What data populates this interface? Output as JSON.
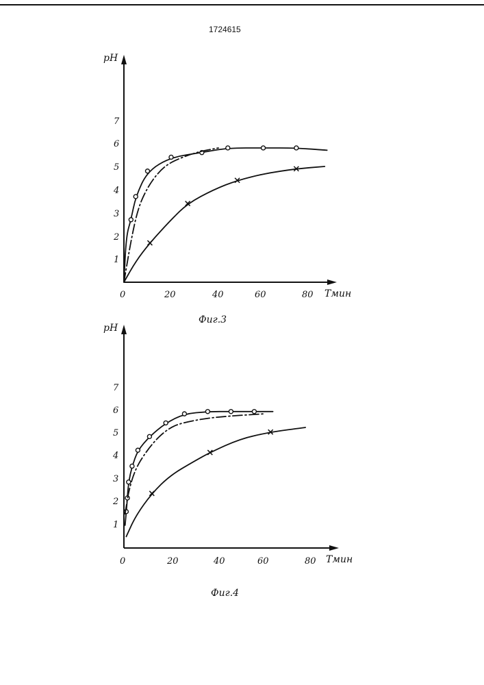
{
  "document": {
    "number": "1724615"
  },
  "chart_data": [
    {
      "type": "line",
      "caption": "Фиг.3",
      "xlabel": "Tмин",
      "ylabel": "pH",
      "xlim": [
        0,
        90
      ],
      "ylim": [
        0,
        8
      ],
      "x_ticks": [
        "0",
        "20",
        "40",
        "60",
        "80"
      ],
      "y_ticks": [
        "1",
        "2",
        "3",
        "4",
        "5",
        "6",
        "7"
      ],
      "series": [
        {
          "marker": "circle",
          "line_style": "solid",
          "x": [
            0,
            1,
            3,
            5,
            10,
            20,
            33,
            44,
            59,
            73,
            86
          ],
          "y": [
            0,
            2.0,
            2.7,
            3.7,
            4.8,
            5.4,
            5.6,
            5.8,
            5.8,
            5.8,
            5.7
          ],
          "markers_x": [
            3,
            5,
            10,
            20,
            33,
            44,
            59,
            73
          ],
          "markers_y": [
            2.7,
            3.7,
            4.8,
            5.4,
            5.6,
            5.8,
            5.8,
            5.8
          ]
        },
        {
          "marker": "none",
          "line_style": "dash-dot",
          "x": [
            0,
            3,
            6,
            10,
            15,
            20,
            30,
            40
          ],
          "y": [
            0,
            1.8,
            3.2,
            4.1,
            4.8,
            5.2,
            5.6,
            5.8
          ]
        },
        {
          "marker": "cross",
          "line_style": "solid",
          "x": [
            0,
            5,
            11,
            20,
            27,
            38,
            48,
            60,
            73,
            85
          ],
          "y": [
            0,
            0.9,
            1.7,
            2.7,
            3.4,
            4.0,
            4.4,
            4.7,
            4.9,
            5.0
          ],
          "markers_x": [
            11,
            27,
            48,
            73
          ],
          "markers_y": [
            1.7,
            3.4,
            4.4,
            4.9
          ]
        }
      ]
    },
    {
      "type": "line",
      "caption": "Фиг.4",
      "xlabel": "Tмин",
      "ylabel": "pH",
      "xlim": [
        0,
        90
      ],
      "ylim": [
        0,
        8
      ],
      "x_ticks": [
        "0",
        "20",
        "40",
        "60",
        "80"
      ],
      "y_ticks": [
        "1",
        "2",
        "3",
        "4",
        "5",
        "6",
        "7"
      ],
      "series": [
        {
          "marker": "circle",
          "line_style": "solid",
          "x": [
            0.5,
            1,
            1.5,
            2,
            3.5,
            6,
            11,
            18,
            26,
            36,
            46,
            56,
            64
          ],
          "y": [
            1.0,
            1.6,
            2.2,
            2.9,
            3.6,
            4.3,
            4.9,
            5.5,
            5.9,
            6.0,
            6.0,
            6.0,
            6.0
          ],
          "markers_x": [
            1,
            1.5,
            2,
            3.5,
            6,
            11,
            18,
            26,
            36,
            46,
            56
          ],
          "markers_y": [
            1.6,
            2.2,
            2.9,
            3.6,
            4.3,
            4.9,
            5.5,
            5.9,
            6.0,
            6.0,
            6.0
          ]
        },
        {
          "marker": "none",
          "line_style": "dash-dot",
          "x": [
            0.5,
            2,
            5,
            10,
            15,
            20,
            25,
            35,
            45,
            60
          ],
          "y": [
            1.5,
            2.5,
            3.5,
            4.3,
            4.9,
            5.3,
            5.5,
            5.7,
            5.8,
            5.9
          ],
          "markers_x": [],
          "markers_y": []
        },
        {
          "marker": "cross",
          "line_style": "solid",
          "x": [
            1,
            5,
            12,
            20,
            30,
            37,
            50,
            63,
            78
          ],
          "y": [
            0.5,
            1.4,
            2.4,
            3.2,
            3.8,
            4.2,
            4.8,
            5.1,
            5.3
          ],
          "markers_x": [
            12,
            37,
            63
          ],
          "markers_y": [
            2.4,
            4.2,
            5.1
          ]
        }
      ]
    }
  ]
}
